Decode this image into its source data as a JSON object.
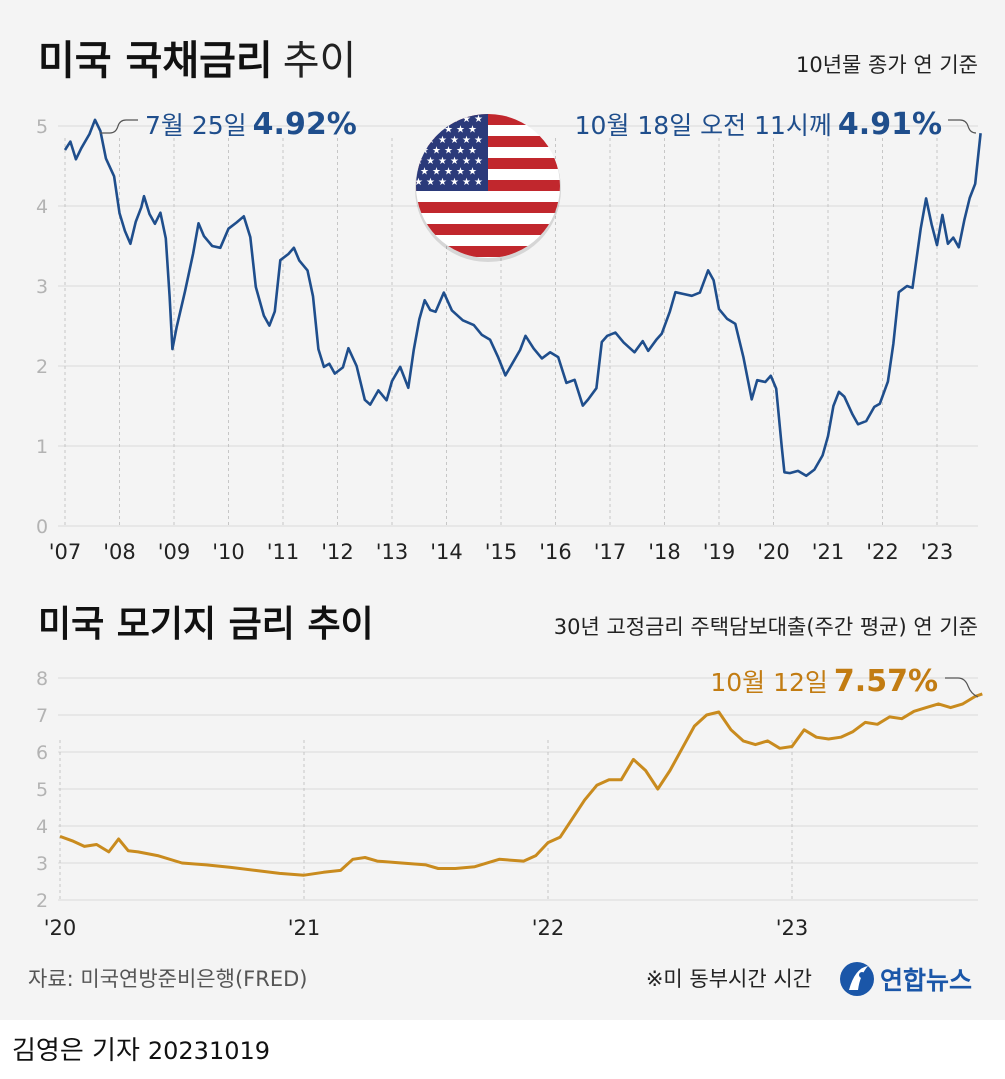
{
  "chart_data": [
    {
      "type": "line",
      "title_bold": "미국 국채금리",
      "title_light": "추이",
      "subtitle": "10년물 종가 연 기준",
      "ylim": [
        0,
        5.2
      ],
      "yticks": [
        "0",
        "1",
        "2",
        "3",
        "4",
        "5"
      ],
      "x_tick_labels": [
        "'07",
        "'08",
        "'09",
        "'10",
        "'11",
        "'12",
        "'13",
        "'14",
        "'15",
        "'16",
        "'17",
        "'18",
        "'19",
        "'20",
        "'21",
        "'22",
        "'23"
      ],
      "series": [
        {
          "name": "10년물 국채금리",
          "color": "#1f4e8c",
          "x": [
            2007.0,
            2007.1,
            2007.2,
            2007.3,
            2007.45,
            2007.55,
            2007.65,
            2007.75,
            2007.9,
            2008.0,
            2008.1,
            2008.2,
            2008.3,
            2008.4,
            2008.45,
            2008.55,
            2008.65,
            2008.75,
            2008.85,
            2008.92,
            2008.97,
            2009.05,
            2009.2,
            2009.35,
            2009.45,
            2009.55,
            2009.7,
            2009.85,
            2010.0,
            2010.15,
            2010.28,
            2010.4,
            2010.5,
            2010.65,
            2010.75,
            2010.85,
            2010.95,
            2011.1,
            2011.2,
            2011.3,
            2011.45,
            2011.55,
            2011.65,
            2011.75,
            2011.85,
            2011.95,
            2012.1,
            2012.2,
            2012.35,
            2012.5,
            2012.6,
            2012.75,
            2012.9,
            2013.0,
            2013.15,
            2013.3,
            2013.4,
            2013.5,
            2013.6,
            2013.7,
            2013.8,
            2013.95,
            2014.1,
            2014.3,
            2014.5,
            2014.65,
            2014.8,
            2014.95,
            2015.08,
            2015.2,
            2015.35,
            2015.45,
            2015.6,
            2015.75,
            2015.9,
            2016.05,
            2016.2,
            2016.35,
            2016.5,
            2016.6,
            2016.75,
            2016.85,
            2016.95,
            2017.1,
            2017.25,
            2017.45,
            2017.6,
            2017.7,
            2017.85,
            2017.95,
            2018.1,
            2018.2,
            2018.35,
            2018.5,
            2018.65,
            2018.8,
            2018.9,
            2019.0,
            2019.15,
            2019.3,
            2019.45,
            2019.6,
            2019.7,
            2019.85,
            2019.95,
            2020.05,
            2020.15,
            2020.2,
            2020.3,
            2020.45,
            2020.6,
            2020.75,
            2020.9,
            2021.0,
            2021.1,
            2021.2,
            2021.3,
            2021.45,
            2021.55,
            2021.7,
            2021.85,
            2021.95,
            2022.1,
            2022.2,
            2022.3,
            2022.45,
            2022.55,
            2022.7,
            2022.8,
            2022.9,
            2023.0,
            2023.1,
            2023.2,
            2023.3,
            2023.4,
            2023.5,
            2023.6,
            2023.7,
            2023.8
          ],
          "values": [
            4.7,
            4.8,
            4.6,
            4.7,
            4.9,
            5.1,
            4.92,
            4.6,
            4.4,
            3.9,
            3.7,
            3.5,
            3.8,
            4.0,
            4.1,
            3.9,
            3.8,
            3.9,
            3.6,
            2.9,
            2.2,
            2.5,
            2.9,
            3.4,
            3.8,
            3.6,
            3.5,
            3.5,
            3.7,
            3.8,
            3.9,
            3.6,
            3.0,
            2.6,
            2.5,
            2.7,
            3.3,
            3.4,
            3.5,
            3.3,
            3.2,
            2.9,
            2.2,
            2.0,
            2.0,
            1.9,
            2.0,
            2.2,
            2.0,
            1.6,
            1.5,
            1.7,
            1.6,
            1.8,
            2.0,
            1.7,
            2.2,
            2.6,
            2.8,
            2.7,
            2.7,
            2.9,
            2.7,
            2.6,
            2.5,
            2.4,
            2.3,
            2.1,
            1.9,
            2.0,
            2.2,
            2.4,
            2.2,
            2.1,
            2.2,
            2.1,
            1.8,
            1.8,
            1.5,
            1.6,
            1.7,
            2.3,
            2.4,
            2.4,
            2.3,
            2.2,
            2.3,
            2.2,
            2.3,
            2.4,
            2.7,
            2.9,
            2.9,
            2.9,
            2.9,
            3.2,
            3.1,
            2.7,
            2.6,
            2.5,
            2.1,
            1.6,
            1.8,
            1.8,
            1.9,
            1.7,
            1.0,
            0.7,
            0.65,
            0.7,
            0.6,
            0.7,
            0.9,
            1.1,
            1.5,
            1.7,
            1.6,
            1.4,
            1.3,
            1.3,
            1.5,
            1.5,
            1.8,
            2.3,
            2.9,
            3.0,
            3.0,
            3.7,
            4.1,
            3.8,
            3.5,
            3.9,
            3.5,
            3.6,
            3.5,
            3.8,
            4.1,
            4.3,
            4.91
          ]
        }
      ],
      "annotations": [
        {
          "prefix": "7월 25일",
          "value": "4.92%"
        },
        {
          "prefix": "10월 18일 오전 11시께",
          "value": "4.91%"
        }
      ]
    },
    {
      "type": "line",
      "title": "미국 모기지 금리 추이",
      "subtitle": "30년 고정금리 주택담보대출(주간 평균) 연 기준",
      "ylim": [
        2,
        8
      ],
      "yticks": [
        "2",
        "3",
        "4",
        "5",
        "6",
        "7",
        "8"
      ],
      "x_tick_labels": [
        "'20",
        "'21",
        "'22",
        "'23"
      ],
      "series": [
        {
          "name": "30년 고정금리",
          "color": "#c98b1e",
          "x": [
            2020.0,
            2020.05,
            2020.1,
            2020.15,
            2020.2,
            2020.24,
            2020.28,
            2020.32,
            2020.4,
            2020.5,
            2020.6,
            2020.7,
            2020.8,
            2020.9,
            2021.0,
            2021.08,
            2021.15,
            2021.2,
            2021.25,
            2021.3,
            2021.4,
            2021.5,
            2021.55,
            2021.62,
            2021.7,
            2021.8,
            2021.9,
            2021.95,
            2022.0,
            2022.05,
            2022.1,
            2022.15,
            2022.2,
            2022.25,
            2022.3,
            2022.35,
            2022.4,
            2022.45,
            2022.5,
            2022.55,
            2022.6,
            2022.65,
            2022.7,
            2022.75,
            2022.8,
            2022.85,
            2022.9,
            2022.95,
            2023.0,
            2023.05,
            2023.1,
            2023.15,
            2023.2,
            2023.25,
            2023.3,
            2023.35,
            2023.4,
            2023.45,
            2023.5,
            2023.55,
            2023.6,
            2023.65,
            2023.7,
            2023.75,
            2023.78
          ],
          "values": [
            3.72,
            3.6,
            3.45,
            3.5,
            3.3,
            3.65,
            3.33,
            3.3,
            3.2,
            3.0,
            2.95,
            2.88,
            2.8,
            2.72,
            2.67,
            2.75,
            2.8,
            3.1,
            3.15,
            3.05,
            3.0,
            2.95,
            2.85,
            2.85,
            2.9,
            3.1,
            3.05,
            3.2,
            3.55,
            3.7,
            4.2,
            4.7,
            5.1,
            5.25,
            5.25,
            5.8,
            5.5,
            5.0,
            5.5,
            6.1,
            6.7,
            7.0,
            7.08,
            6.6,
            6.3,
            6.2,
            6.3,
            6.1,
            6.15,
            6.6,
            6.4,
            6.35,
            6.4,
            6.55,
            6.8,
            6.75,
            6.95,
            6.9,
            7.1,
            7.2,
            7.3,
            7.2,
            7.3,
            7.5,
            7.57
          ]
        }
      ],
      "annotations": [
        {
          "prefix": "10월 12일",
          "value": "7.57%"
        }
      ]
    }
  ],
  "footer": {
    "source": "자료: 미국연방준비은행(FRED)",
    "note": "※미 동부시간 시간",
    "logo_text": "연합뉴스",
    "byline": "김영은 기자",
    "date": "20231019"
  }
}
